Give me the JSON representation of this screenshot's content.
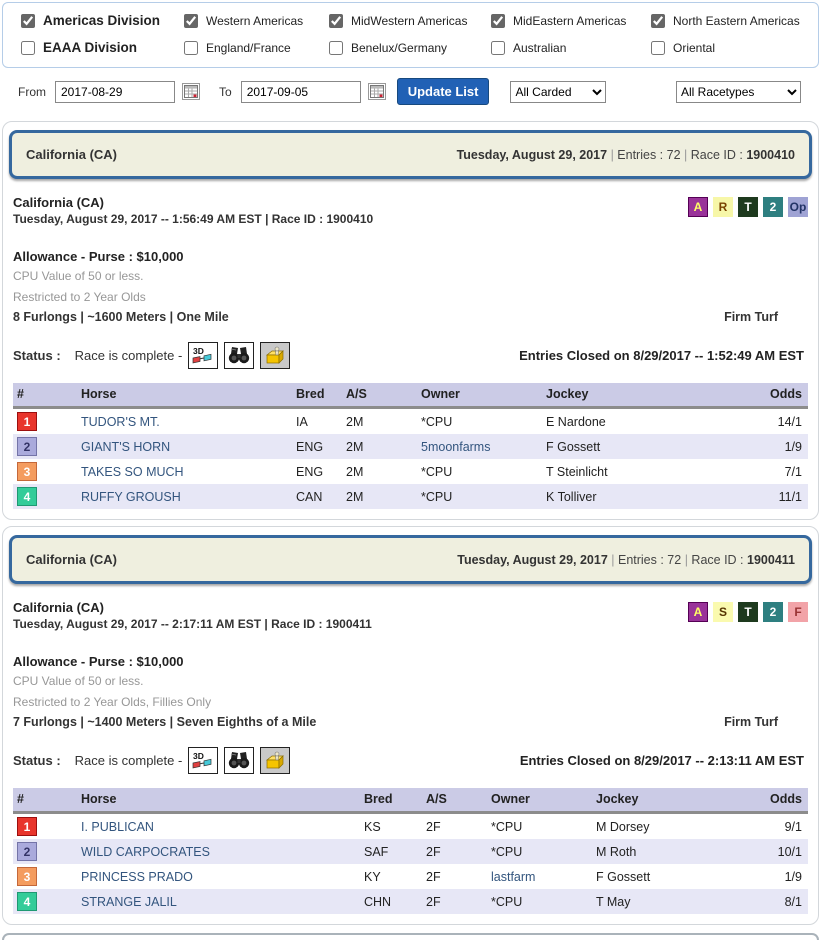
{
  "filters": {
    "divisions": [
      {
        "label": "Americas Division",
        "checked": true
      },
      {
        "label": "Western Americas",
        "checked": true
      },
      {
        "label": "MidWestern Americas",
        "checked": true
      },
      {
        "label": "MidEastern Americas",
        "checked": true
      },
      {
        "label": "North Eastern Americas",
        "checked": true
      },
      {
        "label": "EAAA Division",
        "checked": false
      },
      {
        "label": "England/France",
        "checked": false
      },
      {
        "label": "Benelux/Germany",
        "checked": false
      },
      {
        "label": "Australian",
        "checked": false
      },
      {
        "label": "Oriental",
        "checked": false
      }
    ],
    "from_label": "From",
    "from_value": "2017-08-29",
    "to_label": "To",
    "to_value": "2017-09-05",
    "update_button": "Update List",
    "carded_selected": "All Carded",
    "racetypes_selected": "All Racetypes"
  },
  "number_colors": {
    "1": {
      "bg": "#e8352c",
      "border": "#9c0f0f",
      "fg": "#ffffff"
    },
    "2": {
      "bg": "#aaaadc",
      "border": "#7474a8",
      "fg": "#333366"
    },
    "3": {
      "bg": "#f49c5f",
      "border": "#c4683a",
      "fg": "#ffffff"
    },
    "4": {
      "bg": "#33cc99",
      "border": "#1f9973",
      "fg": "#ffffff"
    }
  },
  "races": [
    {
      "header": {
        "track": "California (CA)",
        "date": "Tuesday, August 29, 2017",
        "entries": "Entries : 72",
        "race_id_label": "Race ID :",
        "race_id": "1900410"
      },
      "detail": {
        "track": "California (CA)",
        "datetime_line": "Tuesday, August 29, 2017 -- 1:56:49 AM EST | Race ID : 1900410",
        "badges": [
          {
            "label": "A",
            "bg": "#993399",
            "fg": "#ffff66",
            "border": "#550055"
          },
          {
            "label": "R",
            "bg": "#f7f7a8",
            "fg": "#7a4400",
            "border": "#f7f7a8"
          },
          {
            "label": "T",
            "bg": "#1e3a1e",
            "fg": "#ffffff",
            "border": "#1e3a1e"
          },
          {
            "label": "2",
            "bg": "#2e7f80",
            "fg": "#ffffff",
            "border": "#2e7f80"
          },
          {
            "label": "Op",
            "bg": "#9fa3d4",
            "fg": "#223366",
            "border": "#9fa3d4"
          }
        ],
        "purse": "Allowance - Purse : $10,000",
        "condition1": "CPU Value of 50 or less.",
        "condition2": "Restricted to 2 Year Olds",
        "distance": "8 Furlongs | ~1600 Meters | One Mile",
        "surface": "Firm Turf",
        "status_label": "Status :",
        "status_text": "Race is complete -",
        "entries_closed": "Entries Closed on 8/29/2017 -- 1:52:49 AM EST",
        "table": {
          "columns": [
            "#",
            "Horse",
            "Bred",
            "A/S",
            "Owner",
            "Jockey",
            "Odds"
          ],
          "rows": [
            {
              "num": "1",
              "horse": "TUDOR'S MT.",
              "bred": "IA",
              "as": "2M",
              "owner": "*CPU",
              "owner_link": false,
              "jockey": "E Nardone",
              "odds": "14/1"
            },
            {
              "num": "2",
              "horse": "GIANT'S HORN",
              "bred": "ENG",
              "as": "2M",
              "owner": "5moonfarms",
              "owner_link": true,
              "jockey": "F Gossett",
              "odds": "1/9"
            },
            {
              "num": "3",
              "horse": "TAKES SO MUCH",
              "bred": "ENG",
              "as": "2M",
              "owner": "*CPU",
              "owner_link": false,
              "jockey": "T Steinlicht",
              "odds": "7/1"
            },
            {
              "num": "4",
              "horse": "RUFFY GROUSH",
              "bred": "CAN",
              "as": "2M",
              "owner": "*CPU",
              "owner_link": false,
              "jockey": "K Tolliver",
              "odds": "11/1"
            }
          ]
        }
      }
    },
    {
      "header": {
        "track": "California (CA)",
        "date": "Tuesday, August 29, 2017",
        "entries": "Entries : 72",
        "race_id_label": "Race ID :",
        "race_id": "1900411"
      },
      "detail": {
        "track": "California (CA)",
        "datetime_line": "Tuesday, August 29, 2017 -- 2:17:11 AM EST | Race ID : 1900411",
        "badges": [
          {
            "label": "A",
            "bg": "#993399",
            "fg": "#ffff66",
            "border": "#550055"
          },
          {
            "label": "S",
            "bg": "#fafaaf",
            "fg": "#553300",
            "border": "#fafaaf"
          },
          {
            "label": "T",
            "bg": "#1e3a1e",
            "fg": "#ffffff",
            "border": "#1e3a1e"
          },
          {
            "label": "2",
            "bg": "#2e7f80",
            "fg": "#ffffff",
            "border": "#2e7f80"
          },
          {
            "label": "F",
            "bg": "#f2a3a8",
            "fg": "#993333",
            "border": "#f2a3a8"
          }
        ],
        "purse": "Allowance - Purse : $10,000",
        "condition1": "CPU Value of 50 or less.",
        "condition2": "Restricted to 2 Year Olds, Fillies Only",
        "distance": "7 Furlongs | ~1400 Meters | Seven Eighths of a Mile",
        "surface": "Firm Turf",
        "status_label": "Status :",
        "status_text": "Race is complete -",
        "entries_closed": "Entries Closed on 8/29/2017 -- 2:13:11 AM EST",
        "table": {
          "columns": [
            "#",
            "Horse",
            "Bred",
            "A/S",
            "Owner",
            "Jockey",
            "Odds"
          ],
          "rows": [
            {
              "num": "1",
              "horse": "I. PUBLICAN",
              "bred": "KS",
              "as": "2F",
              "owner": "*CPU",
              "owner_link": false,
              "jockey": "M Dorsey",
              "odds": "9/1"
            },
            {
              "num": "2",
              "horse": "WILD CARPOCRATES",
              "bred": "SAF",
              "as": "2F",
              "owner": "*CPU",
              "owner_link": false,
              "jockey": "M Roth",
              "odds": "10/1"
            },
            {
              "num": "3",
              "horse": "PRINCESS PRADO",
              "bred": "KY",
              "as": "2F",
              "owner": "lastfarm",
              "owner_link": true,
              "jockey": "F Gossett",
              "odds": "1/9"
            },
            {
              "num": "4",
              "horse": "STRANGE JALIL",
              "bred": "CHN",
              "as": "2F",
              "owner": "*CPU",
              "owner_link": false,
              "jockey": "T May",
              "odds": "8/1"
            }
          ]
        }
      }
    }
  ]
}
